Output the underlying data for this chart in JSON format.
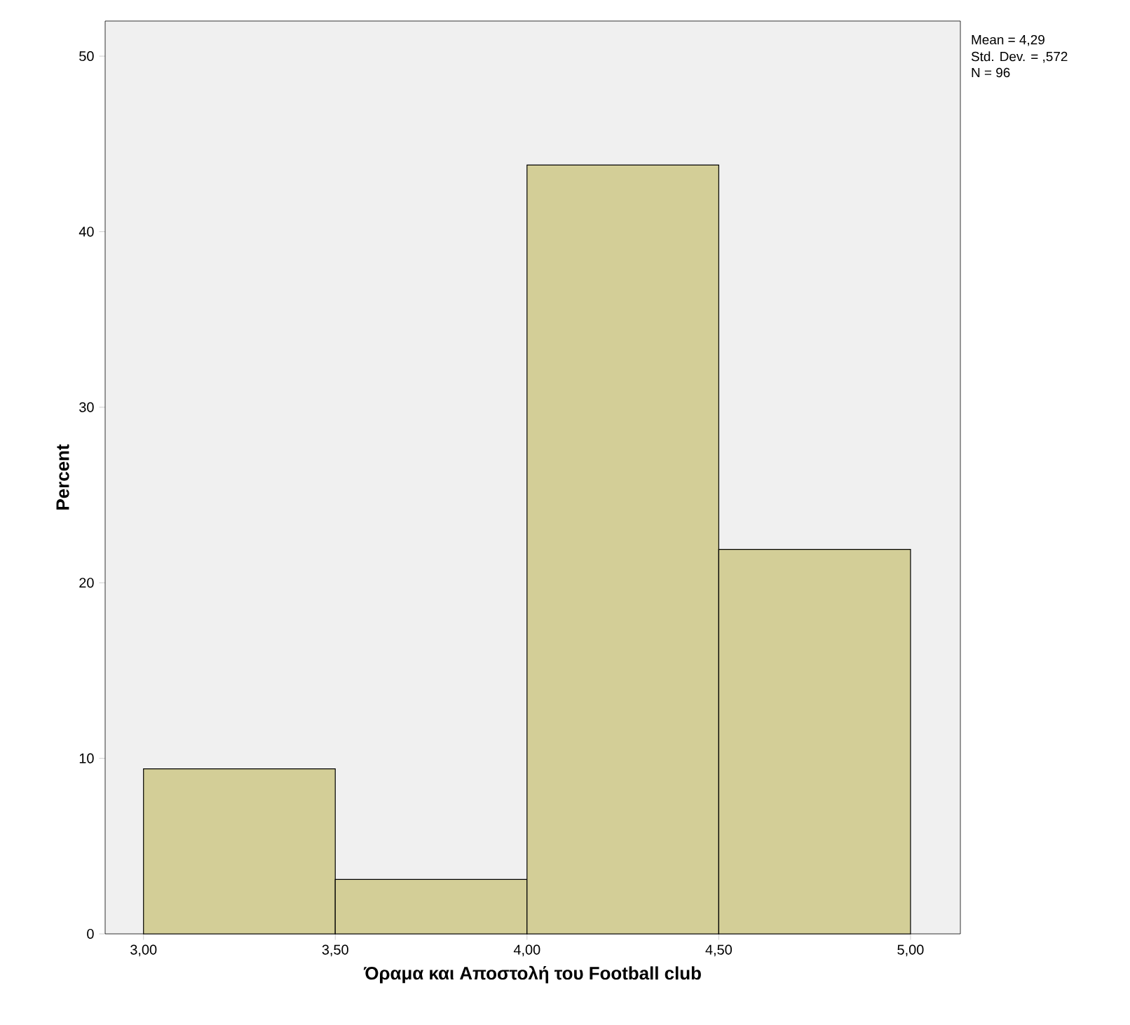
{
  "chart_data": {
    "type": "histogram",
    "xlabel": "Όραμα και Αποστολή του Football club",
    "ylabel": "Percent",
    "bins": [
      3.0,
      3.5,
      4.0,
      4.5,
      5.0
    ],
    "values": [
      9.4,
      3.1,
      43.8,
      21.9
    ],
    "color": "#d3ce97",
    "xlim": [
      2.9,
      5.13
    ],
    "ylim": [
      0,
      52
    ],
    "xticks": [
      {
        "value": 3.0,
        "label": "3,00"
      },
      {
        "value": 3.5,
        "label": "3,50"
      },
      {
        "value": 4.0,
        "label": "4,00"
      },
      {
        "value": 4.5,
        "label": "4,50"
      },
      {
        "value": 5.0,
        "label": "5,00"
      }
    ],
    "yticks": [
      0,
      10,
      20,
      30,
      40,
      50
    ],
    "annotations": [
      "Mean = 4,29",
      "Std. Dev. = ,572",
      "N = 96"
    ],
    "grid": false
  }
}
